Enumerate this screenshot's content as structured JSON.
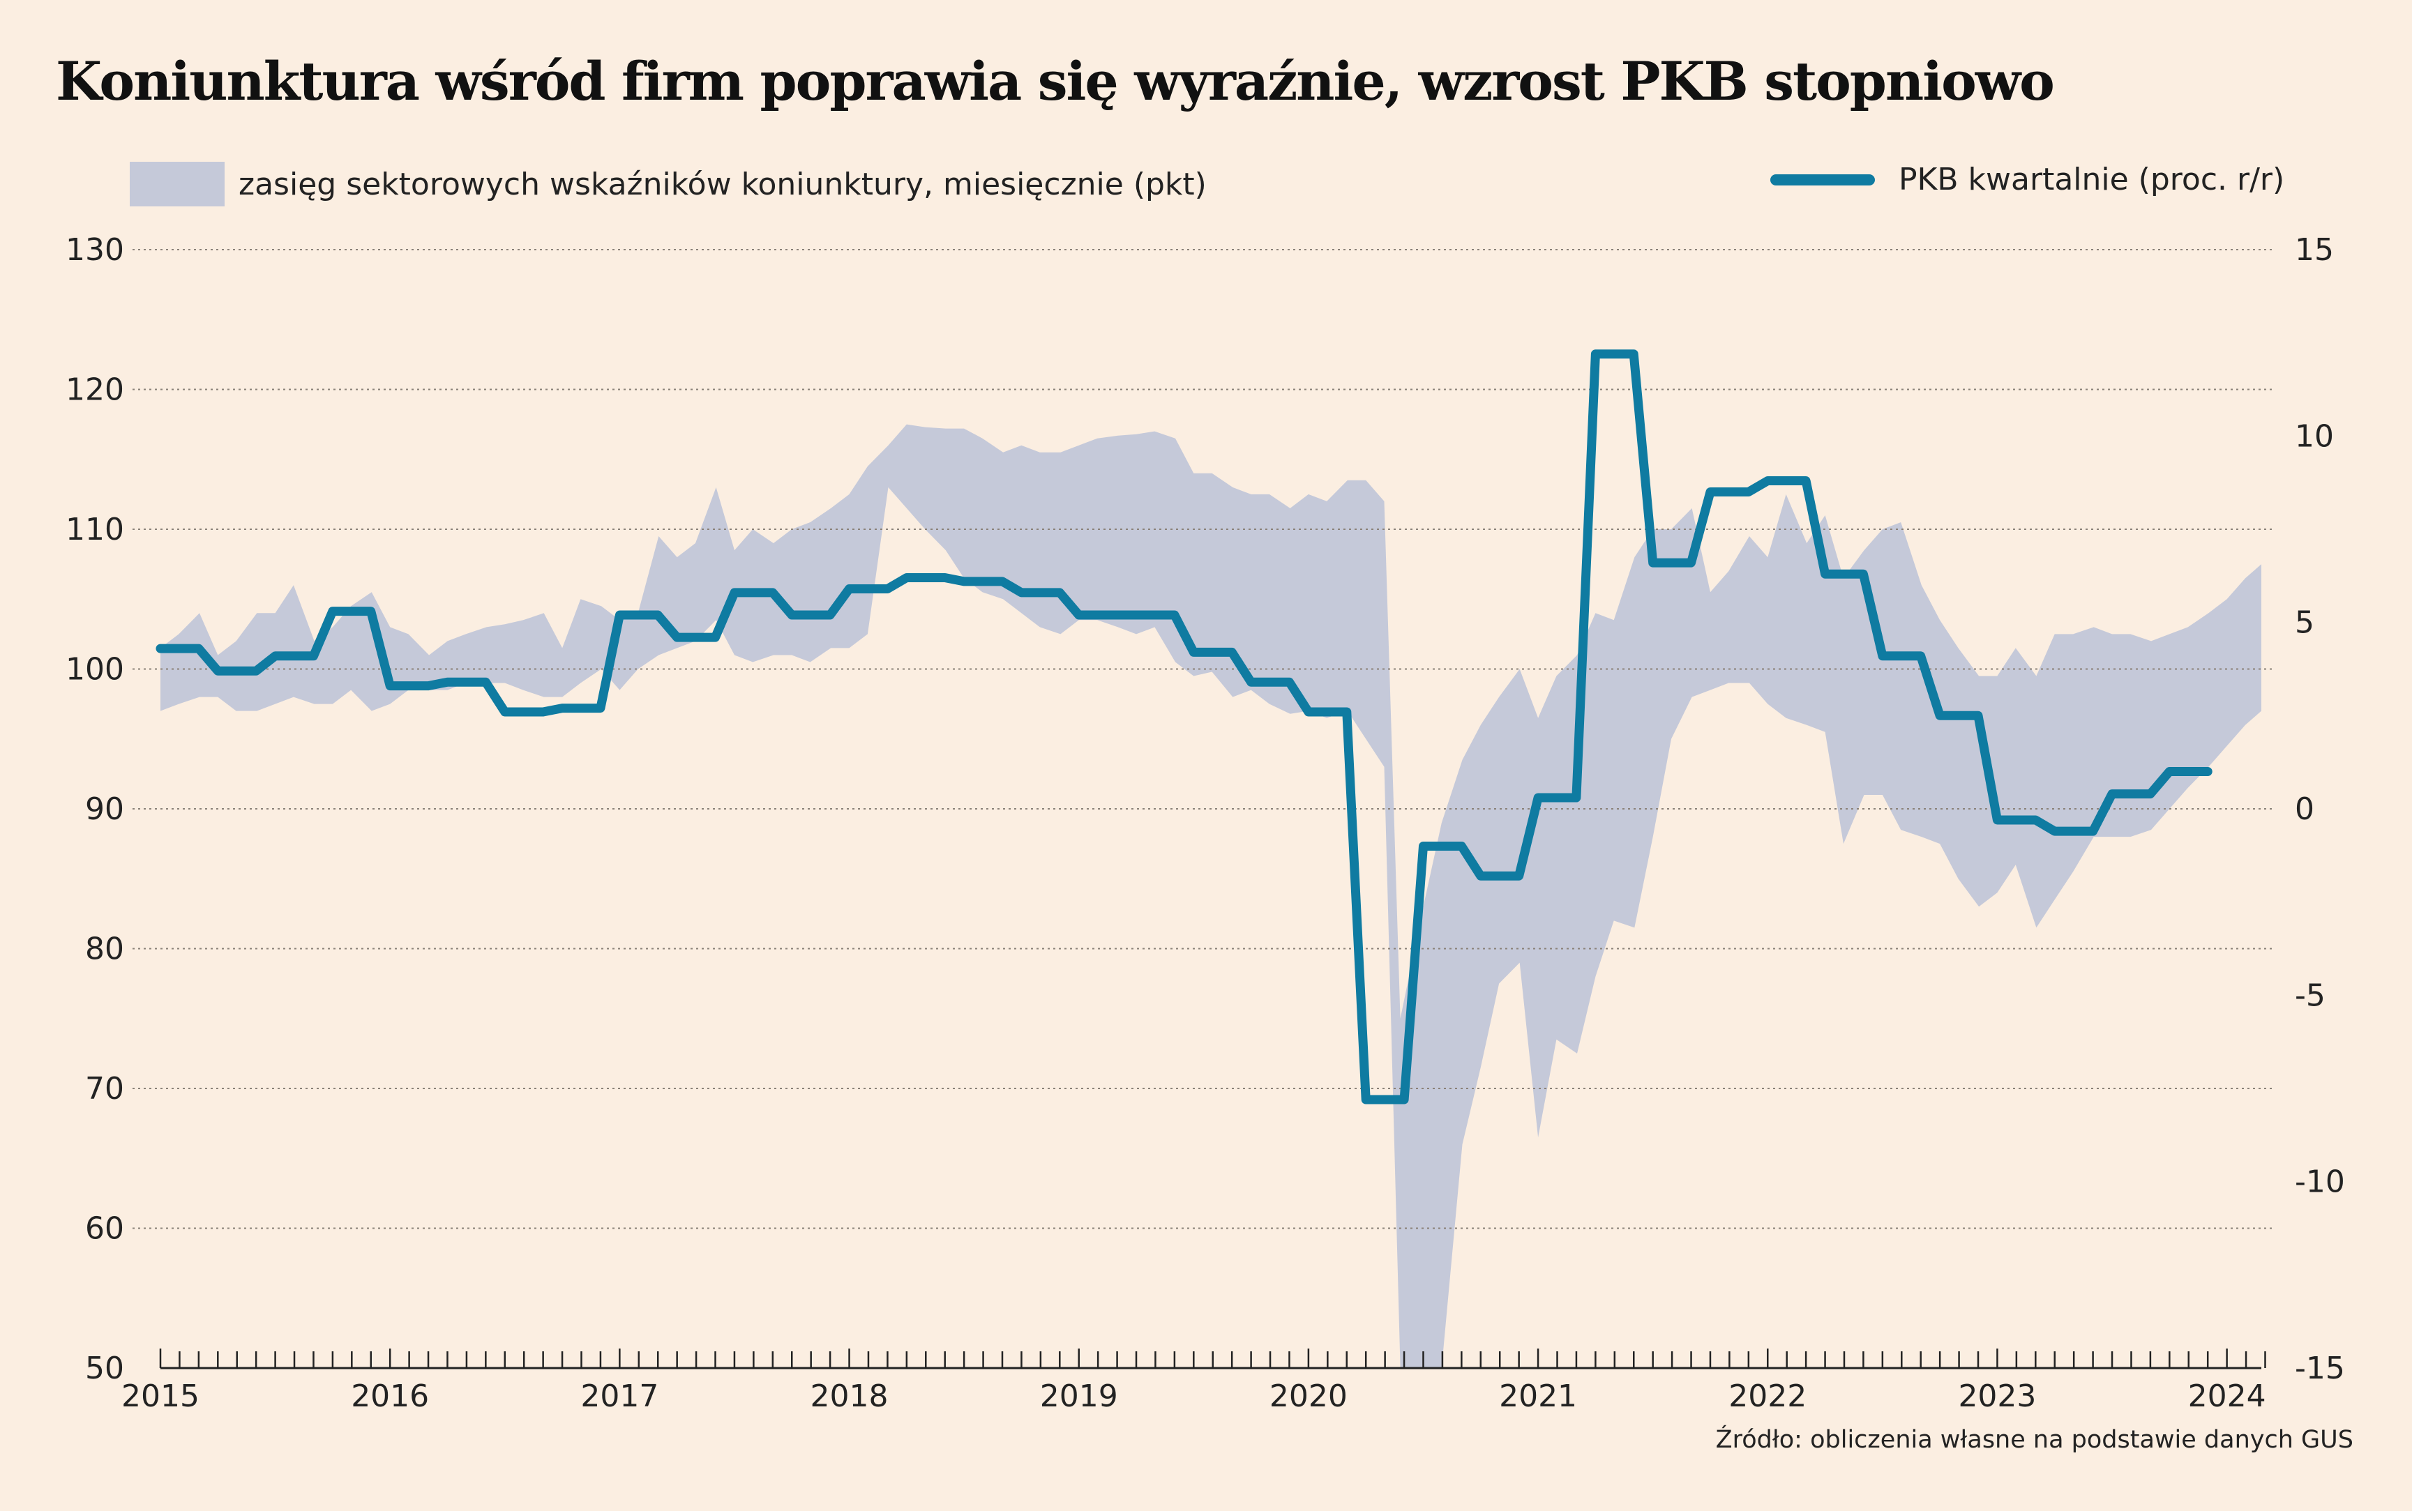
{
  "title": "Koniunktura wśród firm poprawia się wyraźnie, wzrost PKB stopniowo",
  "source": "Źródło: obliczenia własne na podstawie danych GUS",
  "colors": {
    "band": "#c5c9d9",
    "line": "#0f7ba1",
    "grid": "#8a8178",
    "axis": "#222222"
  },
  "chart_data": {
    "type": "area",
    "legend": [
      {
        "label": "zasięg sektorowych wskaźników koniunktury, miesięcznie (pkt)",
        "kind": "band",
        "position": "top-left"
      },
      {
        "label": "PKB kwartalnie (proc. r/r)",
        "kind": "line",
        "position": "top-right"
      }
    ],
    "x_ticks": [
      "2015",
      "2016",
      "2017",
      "2018",
      "2019",
      "2020",
      "2021",
      "2022",
      "2023",
      "2024"
    ],
    "x_range": [
      2015.0,
      2024.15
    ],
    "y_left": {
      "ticks": [
        "130",
        "120",
        "110",
        "100",
        "90",
        "80",
        "70",
        "60",
        "50"
      ],
      "min": 50,
      "max": 130
    },
    "y_right": {
      "ticks": [
        "15",
        "10",
        "5",
        "0",
        "-5",
        "-10",
        "-15"
      ],
      "min": -15,
      "max": 15
    },
    "grid": true,
    "series": [
      {
        "name": "zasięg sektorowych wskaźników koniunktury, miesięcznie (pkt)",
        "axis": "left",
        "type": "band",
        "points": [
          [
            2015.0,
            97.0,
            101.5
          ],
          [
            2015.08,
            97.5,
            102.5
          ],
          [
            2015.17,
            98.0,
            104.0
          ],
          [
            2015.25,
            98.0,
            101.0
          ],
          [
            2015.33,
            97.0,
            102.0
          ],
          [
            2015.42,
            97.0,
            104.0
          ],
          [
            2015.5,
            97.5,
            104.0
          ],
          [
            2015.58,
            98.0,
            106.0
          ],
          [
            2015.67,
            97.5,
            102.0
          ],
          [
            2015.75,
            97.5,
            103.0
          ],
          [
            2015.83,
            98.5,
            104.5
          ],
          [
            2015.92,
            97.0,
            105.5
          ],
          [
            2016.0,
            97.5,
            103.0
          ],
          [
            2016.08,
            98.5,
            102.5
          ],
          [
            2016.17,
            98.5,
            101.0
          ],
          [
            2016.25,
            98.5,
            102.0
          ],
          [
            2016.33,
            99.0,
            102.5
          ],
          [
            2016.42,
            99.0,
            103.0
          ],
          [
            2016.5,
            99.0,
            103.2
          ],
          [
            2016.58,
            98.5,
            103.5
          ],
          [
            2016.67,
            98.0,
            104.0
          ],
          [
            2016.75,
            98.0,
            101.5
          ],
          [
            2016.83,
            99.0,
            105.0
          ],
          [
            2016.92,
            100.0,
            104.5
          ],
          [
            2017.0,
            98.5,
            103.5
          ],
          [
            2017.08,
            100.0,
            104.0
          ],
          [
            2017.17,
            101.0,
            109.5
          ],
          [
            2017.25,
            101.5,
            108.0
          ],
          [
            2017.33,
            102.0,
            109.0
          ],
          [
            2017.42,
            103.5,
            113.0
          ],
          [
            2017.5,
            101.0,
            108.5
          ],
          [
            2017.58,
            100.5,
            110.0
          ],
          [
            2017.67,
            101.0,
            109.0
          ],
          [
            2017.75,
            101.0,
            110.0
          ],
          [
            2017.83,
            100.5,
            110.5
          ],
          [
            2017.92,
            101.5,
            111.5
          ],
          [
            2018.0,
            101.5,
            112.5
          ],
          [
            2018.08,
            102.5,
            114.5
          ],
          [
            2018.17,
            113.0,
            116.0
          ],
          [
            2018.25,
            111.5,
            117.5
          ],
          [
            2018.33,
            110.0,
            117.3
          ],
          [
            2018.42,
            108.5,
            117.2
          ],
          [
            2018.5,
            106.5,
            117.2
          ],
          [
            2018.58,
            105.5,
            116.5
          ],
          [
            2018.67,
            105.0,
            115.5
          ],
          [
            2018.75,
            104.0,
            116.0
          ],
          [
            2018.83,
            103.0,
            115.5
          ],
          [
            2018.92,
            102.5,
            115.5
          ],
          [
            2019.0,
            103.5,
            116.0
          ],
          [
            2019.08,
            103.5,
            116.5
          ],
          [
            2019.17,
            103.0,
            116.7
          ],
          [
            2019.25,
            102.5,
            116.8
          ],
          [
            2019.33,
            103.0,
            117.0
          ],
          [
            2019.42,
            100.5,
            116.5
          ],
          [
            2019.5,
            99.5,
            114.0
          ],
          [
            2019.58,
            99.8,
            114.0
          ],
          [
            2019.67,
            98.0,
            113.0
          ],
          [
            2019.75,
            98.5,
            112.5
          ],
          [
            2019.83,
            97.5,
            112.5
          ],
          [
            2019.92,
            96.8,
            111.5
          ],
          [
            2020.0,
            97.0,
            112.5
          ],
          [
            2020.08,
            96.5,
            112.0
          ],
          [
            2020.17,
            97.0,
            113.5
          ],
          [
            2020.25,
            95.0,
            113.5
          ],
          [
            2020.33,
            93.0,
            112.0
          ],
          [
            2020.4,
            50.0,
            75.0
          ],
          [
            2020.5,
            50.0,
            83.0
          ],
          [
            2020.58,
            50.0,
            89.0
          ],
          [
            2020.67,
            66.0,
            93.5
          ],
          [
            2020.75,
            71.5,
            96.0
          ],
          [
            2020.83,
            77.5,
            98.0
          ],
          [
            2020.92,
            79.0,
            100.0
          ],
          [
            2021.0,
            66.5,
            96.5
          ],
          [
            2021.08,
            73.5,
            99.5
          ],
          [
            2021.17,
            72.5,
            101.0
          ],
          [
            2021.25,
            78.0,
            104.0
          ],
          [
            2021.33,
            82.0,
            103.5
          ],
          [
            2021.42,
            81.5,
            108.0
          ],
          [
            2021.5,
            88.0,
            110.0
          ],
          [
            2021.58,
            95.0,
            110.0
          ],
          [
            2021.67,
            98.0,
            111.5
          ],
          [
            2021.75,
            98.5,
            105.5
          ],
          [
            2021.83,
            99.0,
            107.0
          ],
          [
            2021.92,
            99.0,
            109.5
          ],
          [
            2022.0,
            97.5,
            108.0
          ],
          [
            2022.08,
            96.5,
            112.5
          ],
          [
            2022.17,
            96.0,
            109.0
          ],
          [
            2022.25,
            95.5,
            111.0
          ],
          [
            2022.33,
            87.5,
            106.5
          ],
          [
            2022.42,
            91.0,
            108.5
          ],
          [
            2022.5,
            91.0,
            110.0
          ],
          [
            2022.58,
            88.5,
            110.5
          ],
          [
            2022.67,
            88.0,
            106.0
          ],
          [
            2022.75,
            87.5,
            103.5
          ],
          [
            2022.83,
            85.0,
            101.5
          ],
          [
            2022.92,
            83.0,
            99.5
          ],
          [
            2023.0,
            84.0,
            99.5
          ],
          [
            2023.08,
            86.0,
            101.5
          ],
          [
            2023.17,
            81.5,
            99.5
          ],
          [
            2023.25,
            83.5,
            102.5
          ],
          [
            2023.33,
            85.5,
            102.5
          ],
          [
            2023.42,
            88.0,
            103.0
          ],
          [
            2023.5,
            88.0,
            102.5
          ],
          [
            2023.58,
            88.0,
            102.5
          ],
          [
            2023.67,
            88.5,
            102.0
          ],
          [
            2023.75,
            90.0,
            102.5
          ],
          [
            2023.83,
            91.5,
            103.0
          ],
          [
            2023.92,
            93.0,
            104.0
          ],
          [
            2024.0,
            94.5,
            105.0
          ],
          [
            2024.08,
            96.0,
            106.5
          ],
          [
            2024.15,
            97.0,
            107.5
          ]
        ]
      },
      {
        "name": "PKB kwartalnie (proc. r/r)",
        "axis": "right",
        "type": "step-line",
        "quarters": [
          "2015Q1",
          "2015Q2",
          "2015Q3",
          "2015Q4",
          "2016Q1",
          "2016Q2",
          "2016Q3",
          "2016Q4",
          "2017Q1",
          "2017Q2",
          "2017Q3",
          "2017Q4",
          "2018Q1",
          "2018Q2",
          "2018Q3",
          "2018Q4",
          "2019Q1",
          "2019Q2",
          "2019Q3",
          "2019Q4",
          "2020Q1",
          "2020Q2",
          "2020Q3",
          "2020Q4",
          "2021Q1",
          "2021Q2",
          "2021Q3",
          "2021Q4",
          "2022Q1",
          "2022Q2",
          "2022Q3",
          "2022Q4",
          "2023Q1",
          "2023Q2",
          "2023Q3",
          "2023Q4"
        ],
        "values": [
          4.3,
          3.7,
          4.1,
          5.3,
          3.3,
          3.4,
          2.6,
          2.7,
          5.2,
          4.6,
          5.8,
          5.2,
          5.9,
          6.2,
          6.1,
          5.8,
          5.2,
          5.2,
          4.2,
          3.4,
          2.6,
          -7.8,
          -1.0,
          -1.8,
          0.3,
          12.2,
          6.6,
          8.5,
          8.8,
          6.3,
          4.1,
          2.5,
          -0.3,
          -0.6,
          0.4,
          1.0
        ]
      }
    ]
  }
}
